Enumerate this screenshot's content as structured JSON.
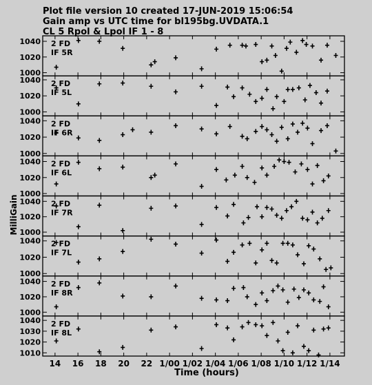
{
  "header": {
    "line1": "Plot file version 10  created 17-JUN-2019 15:06:54",
    "line2": "Gain amp vs UTC time for bl195bg.UVDATA.1",
    "line3": "CL 5  Rpol & Lpol  IF 1 - 8"
  },
  "ylabel": "MilliGain",
  "xlabel": "Time (hours)",
  "xticks": [
    {
      "label": "14",
      "t": 14.0
    },
    {
      "label": "16",
      "t": 15.86
    },
    {
      "label": "18",
      "t": 17.72
    },
    {
      "label": "20",
      "t": 19.58
    },
    {
      "label": "22",
      "t": 21.44
    },
    {
      "label": "1/00",
      "t": 23.3
    },
    {
      "label": "1/02",
      "t": 25.16
    },
    {
      "label": "1/04",
      "t": 27.02
    },
    {
      "label": "1/06",
      "t": 28.88
    },
    {
      "label": "1/08",
      "t": 30.74
    },
    {
      "label": "1/10",
      "t": 32.6
    },
    {
      "label": "1/12",
      "t": 34.46
    },
    {
      "label": "1/14",
      "t": 36.32
    }
  ],
  "colors": {
    "background": "#cfcfcf",
    "ink": "#000000"
  },
  "chart_data": [
    {
      "type": "scatter",
      "label1": "2 FD",
      "label2": "IF 5R",
      "ylim": [
        996,
        1047
      ],
      "yticks": [
        1000,
        1020,
        1040
      ],
      "x": [
        14.1,
        15.9,
        17.6,
        19.5,
        21.8,
        22.1,
        23.8,
        25.9,
        27.1,
        28.2,
        29.2,
        29.5,
        30.3,
        30.8,
        31.2,
        31.6,
        31.9,
        32.4,
        32.8,
        33.1,
        33.6,
        34.1,
        34.4,
        34.9,
        35.6,
        36.1,
        36.8
      ],
      "y": [
        1007,
        1041,
        1040,
        1031,
        1010,
        1014,
        1019,
        1005,
        1030,
        1035,
        1035,
        1034,
        1036,
        1014,
        1016,
        1034,
        1022,
        1002,
        1031,
        1039,
        1026,
        1041,
        1036,
        1034,
        1016,
        1035,
        1022
      ]
    },
    {
      "type": "scatter",
      "label1": "2 FD",
      "label2": "IF 5L",
      "ylim": [
        995,
        1045
      ],
      "yticks": [
        1000,
        1020,
        1040
      ],
      "x": [
        14.1,
        15.9,
        17.6,
        19.5,
        21.8,
        23.8,
        25.9,
        27.1,
        28.0,
        28.5,
        29.2,
        29.8,
        30.3,
        30.8,
        31.2,
        31.7,
        32.0,
        32.6,
        32.9,
        33.3,
        33.8,
        34.3,
        34.7,
        35.2,
        35.6,
        36.1
      ],
      "y": [
        1030,
        1010,
        1035,
        1036,
        1032,
        1025,
        1032,
        1008,
        1031,
        1019,
        1030,
        1022,
        1013,
        1017,
        1028,
        1004,
        1019,
        1013,
        1028,
        1028,
        1030,
        1015,
        1033,
        1024,
        1011,
        1026
      ]
    },
    {
      "type": "scatter",
      "label1": "2 FD",
      "label2": "IF 6R",
      "ylim": [
        997,
        1046
      ],
      "yticks": [
        1000,
        1020,
        1040
      ],
      "x": [
        14.1,
        15.9,
        17.6,
        19.5,
        20.3,
        21.8,
        23.8,
        25.9,
        27.1,
        28.2,
        29.2,
        29.6,
        30.3,
        30.8,
        31.2,
        31.6,
        32.0,
        32.4,
        32.9,
        33.3,
        33.7,
        34.1,
        34.5,
        34.9,
        35.6,
        36.1,
        36.8
      ],
      "y": [
        1025,
        1019,
        1016,
        1023,
        1029,
        1026,
        1034,
        1030,
        1024,
        1033,
        1021,
        1018,
        1027,
        1033,
        1029,
        1023,
        1015,
        1032,
        1018,
        1036,
        1026,
        1037,
        1031,
        1012,
        1028,
        1034,
        1003
      ]
    },
    {
      "type": "scatter",
      "label1": "2 FD",
      "label2": "IF 6L",
      "ylim": [
        997,
        1047
      ],
      "yticks": [
        1000,
        1020,
        1040
      ],
      "x": [
        14.1,
        15.9,
        17.6,
        19.5,
        21.8,
        22.1,
        23.8,
        25.9,
        27.1,
        27.9,
        28.6,
        29.2,
        29.6,
        30.2,
        30.8,
        31.2,
        31.8,
        32.2,
        32.6,
        33.0,
        33.5,
        34.0,
        34.5,
        34.9,
        35.3,
        35.8,
        36.2
      ],
      "y": [
        1012,
        1039,
        1031,
        1033,
        1020,
        1023,
        1037,
        1009,
        1030,
        1017,
        1023,
        1034,
        1020,
        1014,
        1032,
        1023,
        1034,
        1042,
        1040,
        1039,
        1027,
        1037,
        1030,
        1012,
        1035,
        1016,
        1022
      ]
    },
    {
      "type": "scatter",
      "label1": "2 FD",
      "label2": "IF 7R",
      "ylim": [
        995,
        1047
      ],
      "yticks": [
        1000,
        1020,
        1040
      ],
      "x": [
        14.1,
        15.9,
        17.6,
        19.5,
        21.8,
        23.8,
        25.9,
        27.1,
        28.0,
        28.5,
        29.3,
        29.7,
        30.4,
        30.8,
        31.2,
        31.6,
        32.0,
        32.4,
        32.8,
        33.2,
        33.6,
        34.1,
        34.5,
        34.9,
        35.3,
        35.7,
        36.2
      ],
      "y": [
        1034,
        1007,
        1035,
        1002,
        1031,
        1034,
        1010,
        1032,
        1021,
        1036,
        1012,
        1019,
        1033,
        1020,
        1032,
        1030,
        1022,
        1018,
        1028,
        1033,
        1040,
        1018,
        1016,
        1026,
        1012,
        1018,
        1028
      ]
    },
    {
      "type": "scatter",
      "label1": "2 FD",
      "label2": "IF 7L",
      "ylim": [
        997,
        1046
      ],
      "yticks": [
        1000,
        1020,
        1040
      ],
      "x": [
        14.1,
        15.9,
        17.6,
        19.5,
        21.8,
        23.8,
        25.9,
        27.1,
        28.0,
        28.5,
        29.2,
        29.8,
        30.3,
        30.8,
        31.2,
        31.6,
        32.0,
        32.5,
        32.9,
        33.3,
        33.7,
        34.2,
        34.6,
        35.0,
        35.5,
        36.0,
        36.4
      ],
      "y": [
        1038,
        1014,
        1018,
        1027,
        1042,
        1036,
        1025,
        1041,
        1015,
        1026,
        1035,
        1037,
        1013,
        1029,
        1037,
        1016,
        1013,
        1037,
        1037,
        1035,
        1023,
        1012,
        1034,
        1030,
        1018,
        1005,
        1007
      ]
    },
    {
      "type": "scatter",
      "label1": "2 FD",
      "label2": "IF 8R",
      "ylim": [
        995,
        1047
      ],
      "yticks": [
        1000,
        1020,
        1040
      ],
      "x": [
        14.1,
        15.9,
        17.6,
        19.5,
        21.8,
        23.8,
        25.9,
        27.1,
        28.0,
        28.5,
        29.3,
        29.6,
        30.3,
        30.8,
        31.2,
        31.7,
        32.1,
        32.5,
        32.9,
        33.4,
        33.8,
        34.2,
        34.6,
        35.0,
        35.5,
        35.8,
        36.2
      ],
      "y": [
        1007,
        1032,
        1038,
        1021,
        1020,
        1034,
        1018,
        1016,
        1015,
        1031,
        1032,
        1020,
        1010,
        1025,
        1015,
        1028,
        1034,
        1029,
        1013,
        1030,
        1019,
        1029,
        1025,
        1016,
        1014,
        1033,
        1007
      ]
    },
    {
      "type": "scatter",
      "label1": "2 FD",
      "label2": "IF 8L",
      "ylim": [
        1007,
        1044
      ],
      "yticks": [
        1010,
        1020,
        1030,
        1040
      ],
      "x": [
        14.1,
        15.9,
        17.6,
        19.5,
        21.8,
        23.8,
        25.9,
        27.1,
        28.0,
        28.5,
        29.2,
        29.7,
        30.3,
        30.8,
        31.2,
        31.7,
        32.1,
        32.5,
        32.9,
        33.3,
        33.7,
        34.2,
        34.6,
        35.0,
        35.4,
        35.8,
        36.2
      ],
      "y": [
        1021,
        1032,
        1011,
        1015,
        1031,
        1034,
        1014,
        1036,
        1033,
        1022,
        1034,
        1038,
        1036,
        1035,
        1026,
        1038,
        1021,
        1012,
        1029,
        1010,
        1035,
        1016,
        1012,
        1031,
        1008,
        1032,
        1033
      ]
    }
  ]
}
